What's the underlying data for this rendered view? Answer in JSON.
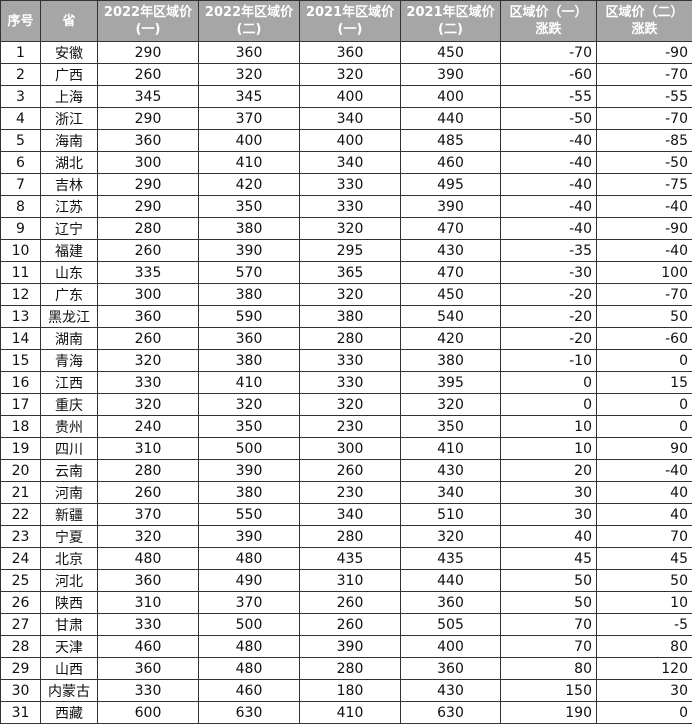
{
  "headers": [
    "序号",
    "省",
    "2022年区域价\n(一)",
    "2022年区域价\n(二)",
    "2021年区域价\n(一)",
    "2021年区域价\n(二)",
    "区域价（一）\n涨跌",
    "区域价（二）\n涨跌"
  ],
  "rows": [
    [
      "1",
      "安徽",
      "290",
      "360",
      "360",
      "450",
      "-70",
      "-90"
    ],
    [
      "2",
      "广西",
      "260",
      "320",
      "320",
      "390",
      "-60",
      "-70"
    ],
    [
      "3",
      "上海",
      "345",
      "345",
      "400",
      "400",
      "-55",
      "-55"
    ],
    [
      "4",
      "浙江",
      "290",
      "370",
      "340",
      "440",
      "-50",
      "-70"
    ],
    [
      "5",
      "海南",
      "360",
      "400",
      "400",
      "485",
      "-40",
      "-85"
    ],
    [
      "6",
      "湖北",
      "300",
      "410",
      "340",
      "460",
      "-40",
      "-50"
    ],
    [
      "7",
      "吉林",
      "290",
      "420",
      "330",
      "495",
      "-40",
      "-75"
    ],
    [
      "8",
      "江苏",
      "290",
      "350",
      "330",
      "390",
      "-40",
      "-40"
    ],
    [
      "9",
      "辽宁",
      "280",
      "380",
      "320",
      "470",
      "-40",
      "-90"
    ],
    [
      "10",
      "福建",
      "260",
      "390",
      "295",
      "430",
      "-35",
      "-40"
    ],
    [
      "11",
      "山东",
      "335",
      "570",
      "365",
      "470",
      "-30",
      "100"
    ],
    [
      "12",
      "广东",
      "300",
      "380",
      "320",
      "450",
      "-20",
      "-70"
    ],
    [
      "13",
      "黑龙江",
      "360",
      "590",
      "380",
      "540",
      "-20",
      "50"
    ],
    [
      "14",
      "湖南",
      "260",
      "360",
      "280",
      "420",
      "-20",
      "-60"
    ],
    [
      "15",
      "青海",
      "320",
      "380",
      "330",
      "380",
      "-10",
      "0"
    ],
    [
      "16",
      "江西",
      "330",
      "410",
      "330",
      "395",
      "0",
      "15"
    ],
    [
      "17",
      "重庆",
      "320",
      "320",
      "320",
      "320",
      "0",
      "0"
    ],
    [
      "18",
      "贵州",
      "240",
      "350",
      "230",
      "350",
      "10",
      "0"
    ],
    [
      "19",
      "四川",
      "310",
      "500",
      "300",
      "410",
      "10",
      "90"
    ],
    [
      "20",
      "云南",
      "280",
      "390",
      "260",
      "430",
      "20",
      "-40"
    ],
    [
      "21",
      "河南",
      "260",
      "380",
      "230",
      "340",
      "30",
      "40"
    ],
    [
      "22",
      "新疆",
      "370",
      "550",
      "340",
      "510",
      "30",
      "40"
    ],
    [
      "23",
      "宁夏",
      "320",
      "390",
      "280",
      "320",
      "40",
      "70"
    ],
    [
      "24",
      "北京",
      "480",
      "480",
      "435",
      "435",
      "45",
      "45"
    ],
    [
      "25",
      "河北",
      "360",
      "490",
      "310",
      "440",
      "50",
      "50"
    ],
    [
      "26",
      "陕西",
      "310",
      "370",
      "260",
      "360",
      "50",
      "10"
    ],
    [
      "27",
      "甘肃",
      "330",
      "500",
      "260",
      "505",
      "70",
      "-5"
    ],
    [
      "28",
      "天津",
      "460",
      "480",
      "390",
      "400",
      "70",
      "80"
    ],
    [
      "29",
      "山西",
      "360",
      "480",
      "280",
      "360",
      "80",
      "120"
    ],
    [
      "30",
      "内蒙古",
      "330",
      "460",
      "180",
      "430",
      "150",
      "30"
    ],
    [
      "31",
      "西藏",
      "600",
      "630",
      "410",
      "630",
      "190",
      "0"
    ]
  ]
}
